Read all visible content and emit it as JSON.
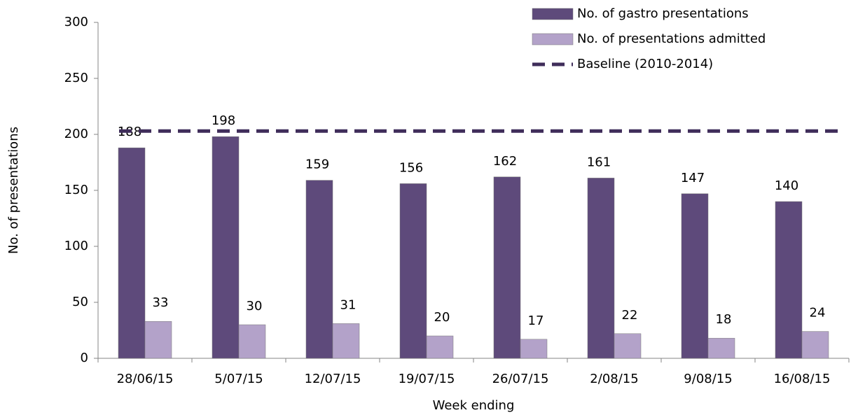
{
  "chart_data": {
    "type": "bar",
    "x_label": "Week ending",
    "y_label": "No. of presentations",
    "categories": [
      "28/06/15",
      "5/07/15",
      "12/07/15",
      "19/07/15",
      "26/07/15",
      "2/08/15",
      "9/08/15",
      "16/08/15"
    ],
    "series": [
      {
        "name": "No. of gastro presentations",
        "color": "#5e4a7b",
        "values": [
          188,
          198,
          159,
          156,
          162,
          161,
          147,
          140
        ]
      },
      {
        "name": "No. of presentations admitted",
        "color": "#b3a2c9",
        "values": [
          33,
          30,
          31,
          20,
          17,
          22,
          18,
          24
        ]
      }
    ],
    "baseline": {
      "name": "Baseline (2010-2014)",
      "color": "#3f2d5a",
      "value": 203
    },
    "ylim": [
      0,
      300
    ],
    "yticks": [
      0,
      50,
      100,
      150,
      200,
      250,
      300
    ],
    "grid": false
  }
}
